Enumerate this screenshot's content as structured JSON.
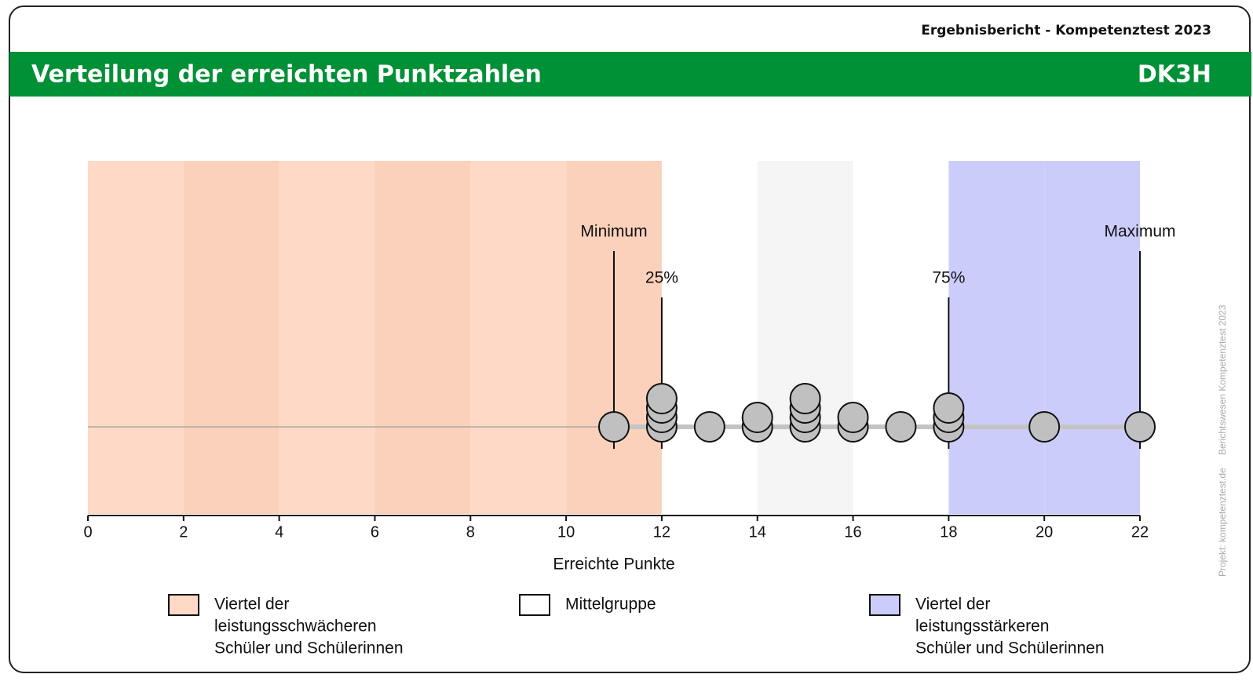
{
  "header": "Ergebnisbericht - Kompetenztest 2023",
  "side_text": [
    "Projekt: kompetenztest.de",
    "Berichtswesen Kompetenztest 2023"
  ],
  "chart_data": {
    "type": "dotplot",
    "title": "Verteilung der erreichten Punktzahlen",
    "code": "DK3H",
    "xlabel": "Erreichte Punkte",
    "xlim": [
      0,
      22
    ],
    "xticks": [
      0,
      2,
      4,
      6,
      8,
      10,
      12,
      14,
      16,
      18,
      20,
      22
    ],
    "x": [
      11,
      12,
      13,
      14,
      15,
      16,
      17,
      18,
      20,
      22
    ],
    "counts": [
      1,
      4,
      1,
      2,
      4,
      2,
      1,
      3,
      1,
      1
    ],
    "dot_color": "#c0c0c0",
    "markers": [
      {
        "label": "Minimum",
        "value": 11
      },
      {
        "label": "25%",
        "value": 12
      },
      {
        "label": "75%",
        "value": 18
      },
      {
        "label": "Maximum",
        "value": 22
      }
    ],
    "bands": [
      {
        "name": [
          "Viertel der",
          "leistungsschwächeren",
          "Schüler und Schülerinnen"
        ],
        "from": 0,
        "to": 12,
        "colors": [
          "#fdd9c6",
          "#fcd1bb"
        ]
      },
      {
        "name": [
          "Mittelgruppe"
        ],
        "from": 12,
        "to": 18,
        "colors": [
          "#ffffff",
          "#f5f5f5"
        ]
      },
      {
        "name": [
          "Viertel der",
          "leistungsstärkeren",
          "Schüler und Schülerinnen"
        ],
        "from": 18,
        "to": 22,
        "colors": [
          "#ccccfb",
          "#ccccfb"
        ]
      }
    ]
  }
}
